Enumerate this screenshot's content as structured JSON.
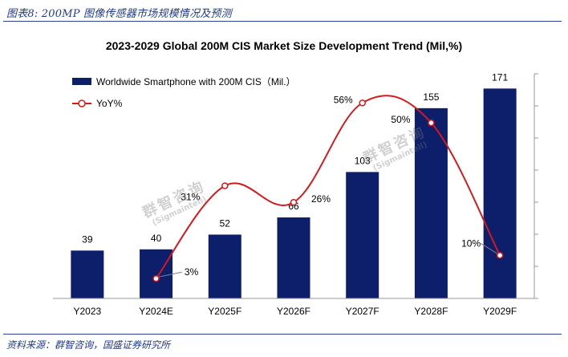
{
  "caption": "图表8:  200MP 图像传感器市场规模情况及预测",
  "source": "资料来源：群智咨询，国盛证券研究所",
  "watermark": {
    "brand": "群智咨询",
    "handle": "(Sigmaintell)"
  },
  "chart_data": {
    "type": "bar",
    "title": "2023-2029 Global 200M CIS Market Size Development Trend (Mil,%)",
    "categories": [
      "Y2023",
      "Y2024E",
      "Y2025F",
      "Y2026F",
      "Y2027F",
      "Y2028F",
      "Y2029F"
    ],
    "legend_position": "top-left",
    "grid": false,
    "ylim": [
      0,
      175
    ],
    "series": [
      {
        "name": "Worldwide Smartphone with 200M CIS（Mil.）",
        "type": "bar",
        "color": "#0d1f6b",
        "values": [
          39,
          40,
          52,
          66,
          103,
          155,
          171
        ],
        "labels": [
          "39",
          "40",
          "52",
          "66",
          "103",
          "155",
          "171"
        ]
      },
      {
        "name": "YoY%",
        "type": "line",
        "color": "#d7191c",
        "values": [
          null,
          3,
          31,
          26,
          56,
          50,
          10
        ],
        "labels": [
          "",
          "3%",
          "31%",
          "26%",
          "56%",
          "50%",
          "10%"
        ]
      }
    ]
  }
}
